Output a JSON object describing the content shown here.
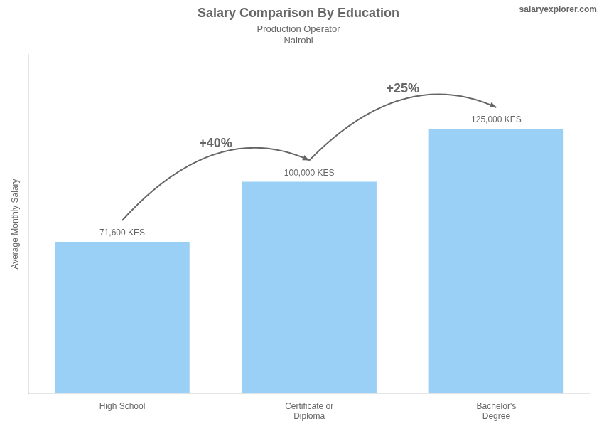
{
  "chart_data": {
    "type": "bar",
    "title": "Salary Comparison By Education",
    "subtitle": [
      "Production Operator",
      "Nairobi"
    ],
    "credit": "salaryexplorer.com",
    "y_label": "Average Monthly Salary",
    "categories": [
      "High School",
      "Certificate or\nDiploma",
      "Bachelor's\nDegree"
    ],
    "values": [
      71600,
      100000,
      125000
    ],
    "value_labels": [
      "71,600 KES",
      "100,000 KES",
      "125,000 KES"
    ],
    "data_labels": true,
    "ylim": [
      0,
      160000
    ],
    "grid": false,
    "tick_labels": "x",
    "annotations": [
      {
        "text": "+40%",
        "from": "High School",
        "to": "Certificate or\nDiploma"
      },
      {
        "text": "+25%",
        "from": "Certificate or\nDiploma",
        "to": "Bachelor's\nDegree"
      }
    ]
  }
}
